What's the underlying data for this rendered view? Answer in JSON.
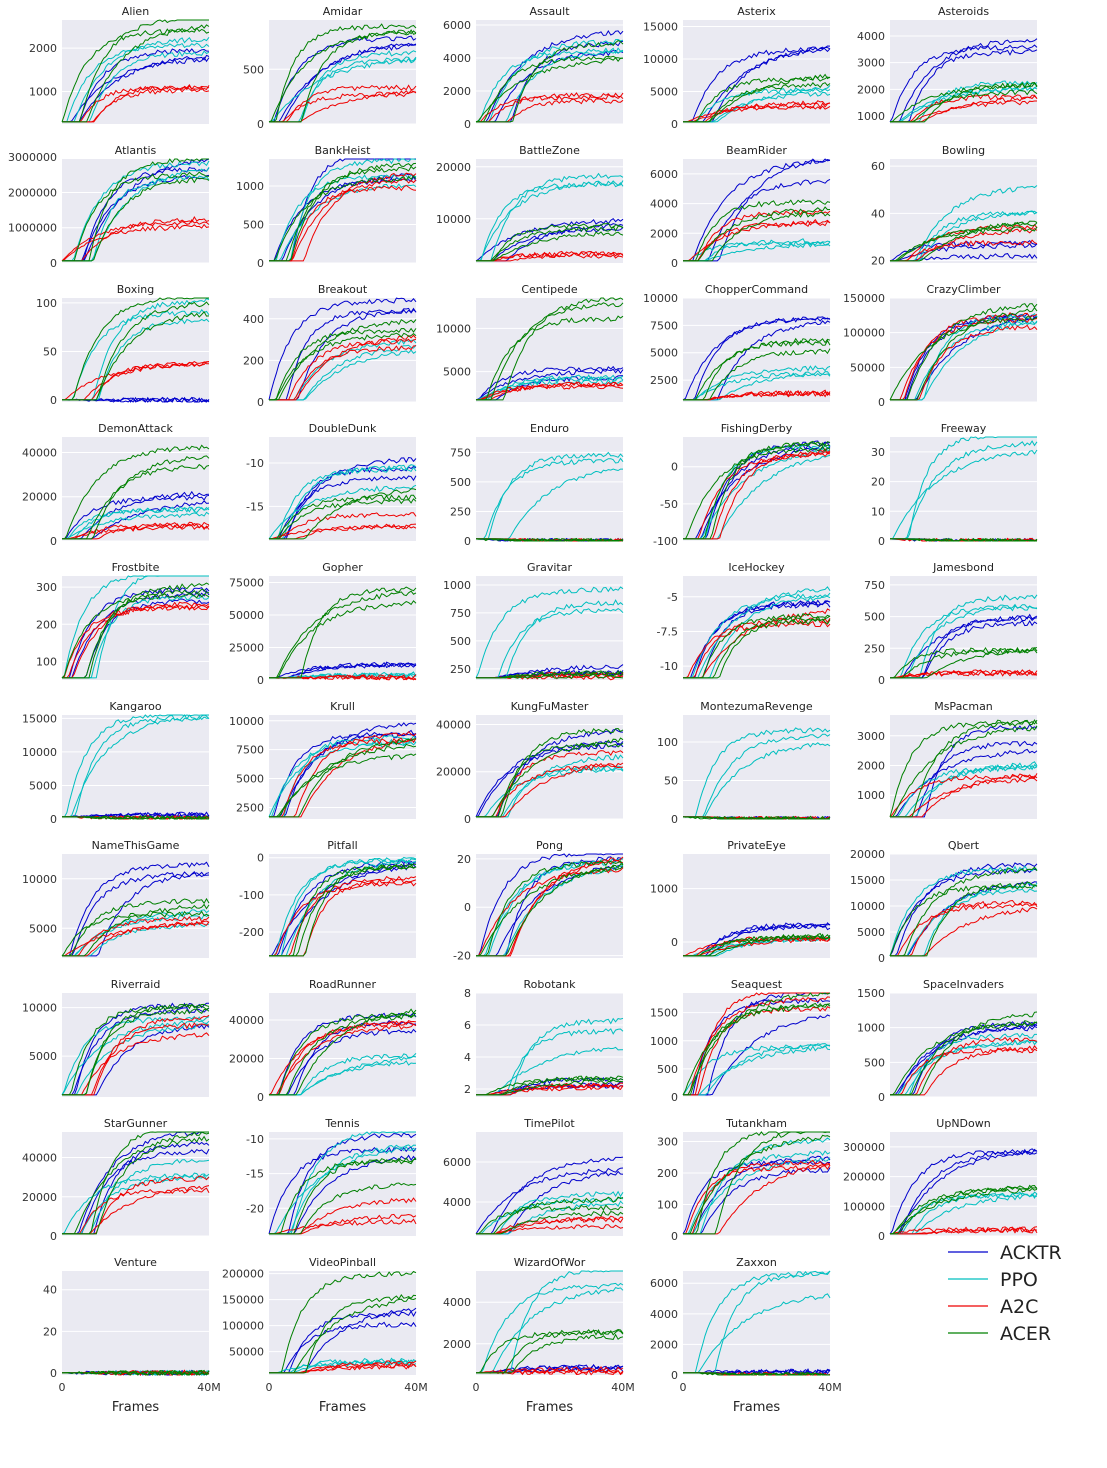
{
  "chart_data": {
    "type": "line",
    "xlabel": "Frames",
    "x_tick_labels": [
      "0",
      "40M"
    ],
    "x_range": [
      0,
      40000000
    ],
    "grid": true,
    "legend_placement": "bottom-right",
    "series": [
      {
        "name": "ACKTR",
        "color": "#0000cc"
      },
      {
        "name": "PPO",
        "color": "#00bfbf"
      },
      {
        "name": "A2C",
        "color": "#ee0000"
      },
      {
        "name": "ACER",
        "color": "#008000"
      }
    ],
    "panels": [
      {
        "title": "Alien",
        "ylim": [
          250,
          2650
        ],
        "yticks": [
          1000,
          2000
        ],
        "final": {
          "ACKTR": 1700,
          "PPO": 2000,
          "A2C": 1200,
          "ACER": 2400
        }
      },
      {
        "title": "Amidar",
        "ylim": [
          0,
          950
        ],
        "yticks": [
          0,
          500
        ],
        "final": {
          "ACKTR": 750,
          "PPO": 650,
          "A2C": 300,
          "ACER": 850
        }
      },
      {
        "title": "Assault",
        "ylim": [
          0,
          6300
        ],
        "yticks": [
          0,
          2000,
          4000,
          6000
        ],
        "final": {
          "ACKTR": 5000,
          "PPO": 4500,
          "A2C": 1600,
          "ACER": 4500
        }
      },
      {
        "title": "Asterix",
        "ylim": [
          0,
          16000
        ],
        "yticks": [
          0,
          5000,
          10000,
          15000
        ],
        "final": {
          "ACKTR": 12000,
          "PPO": 5500,
          "A2C": 3000,
          "ACER": 7000
        }
      },
      {
        "title": "Asteroids",
        "ylim": [
          700,
          4600
        ],
        "yticks": [
          1000,
          2000,
          3000,
          4000
        ],
        "final": {
          "ACKTR": 3500,
          "PPO": 2100,
          "A2C": 1600,
          "ACER": 2000
        }
      },
      {
        "title": "Atlantis",
        "ylim": [
          0,
          2950000
        ],
        "yticks": [
          0,
          1000000,
          2000000,
          3000000
        ],
        "final": {
          "ACKTR": 2700000,
          "PPO": 2700000,
          "A2C": 1200000,
          "ACER": 2750000
        }
      },
      {
        "title": "BankHeist",
        "ylim": [
          0,
          1350
        ],
        "yticks": [
          0,
          500,
          1000
        ],
        "final": {
          "ACKTR": 1280,
          "PPO": 1200,
          "A2C": 1100,
          "ACER": 1150
        }
      },
      {
        "title": "BattleZone",
        "ylim": [
          1500,
          21500
        ],
        "yticks": [
          10000,
          20000
        ],
        "final": {
          "ACKTR": 9000,
          "PPO": 17000,
          "A2C": 3000,
          "ACER": 8000
        }
      },
      {
        "title": "BeamRider",
        "ylim": [
          0,
          7000
        ],
        "yticks": [
          0,
          2000,
          4000,
          6000
        ],
        "final": {
          "ACKTR": 6400,
          "PPO": 1500,
          "A2C": 3000,
          "ACER": 3900
        }
      },
      {
        "title": "Bowling",
        "ylim": [
          19,
          63
        ],
        "yticks": [
          20,
          40,
          60
        ],
        "final": {
          "ACKTR": 25,
          "PPO": 45,
          "A2C": 31,
          "ACER": 33
        }
      },
      {
        "title": "Boxing",
        "ylim": [
          -2,
          105
        ],
        "yticks": [
          0,
          50,
          100
        ],
        "final": {
          "ACKTR": 0,
          "PPO": 95,
          "A2C": 40,
          "ACER": 98
        }
      },
      {
        "title": "Breakout",
        "ylim": [
          0,
          500
        ],
        "yticks": [
          0,
          200,
          400
        ],
        "final": {
          "ACKTR": 430,
          "PPO": 270,
          "A2C": 300,
          "ACER": 350
        }
      },
      {
        "title": "Centipede",
        "ylim": [
          1500,
          13500
        ],
        "yticks": [
          5000,
          10000
        ],
        "final": {
          "ACKTR": 5000,
          "PPO": 4500,
          "A2C": 3500,
          "ACER": 12000
        }
      },
      {
        "title": "ChopperCommand",
        "ylim": [
          500,
          10000
        ],
        "yticks": [
          2500,
          5000,
          7500,
          10000
        ],
        "final": {
          "ACKTR": 8000,
          "PPO": 3200,
          "A2C": 1200,
          "ACER": 5500
        }
      },
      {
        "title": "CrazyClimber",
        "ylim": [
          0,
          150000
        ],
        "yticks": [
          0,
          50000,
          100000,
          150000
        ],
        "final": {
          "ACKTR": 115000,
          "PPO": 110000,
          "A2C": 112000,
          "ACER": 135000
        }
      },
      {
        "title": "DemonAttack",
        "ylim": [
          0,
          47000
        ],
        "yticks": [
          0,
          20000,
          40000
        ],
        "final": {
          "ACKTR": 22000,
          "PPO": 13000,
          "A2C": 7500,
          "ACER": 38000
        }
      },
      {
        "title": "DoubleDunk",
        "ylim": [
          -19,
          -7
        ],
        "yticks": [
          -15,
          -10
        ],
        "final": {
          "ACKTR": -11,
          "PPO": -12,
          "A2C": -16,
          "ACER": -13
        }
      },
      {
        "title": "Enduro",
        "ylim": [
          0,
          880
        ],
        "yticks": [
          0,
          250,
          500,
          750
        ],
        "final": {
          "ACKTR": 0,
          "PPO": 760,
          "A2C": 0,
          "ACER": 0
        }
      },
      {
        "title": "FishingDerby",
        "ylim": [
          -100,
          40
        ],
        "yticks": [
          -100,
          -50,
          0
        ],
        "final": {
          "ACKTR": 30,
          "PPO": 25,
          "A2C": 20,
          "ACER": 28
        }
      },
      {
        "title": "Freeway",
        "ylim": [
          0,
          35
        ],
        "yticks": [
          0,
          10,
          20,
          30
        ],
        "final": {
          "ACKTR": 0,
          "PPO": 32,
          "A2C": 0,
          "ACER": 0
        }
      },
      {
        "title": "Frostbite",
        "ylim": [
          50,
          330
        ],
        "yticks": [
          100,
          200,
          300
        ],
        "final": {
          "ACKTR": 280,
          "PPO": 310,
          "A2C": 260,
          "ACER": 270
        }
      },
      {
        "title": "Gopher",
        "ylim": [
          0,
          80000
        ],
        "yticks": [
          0,
          25000,
          50000,
          75000
        ],
        "final": {
          "ACKTR": 12000,
          "PPO": 4000,
          "A2C": 2000,
          "ACER": 70000
        }
      },
      {
        "title": "Gravitar",
        "ylim": [
          150,
          1080
        ],
        "yticks": [
          250,
          500,
          750,
          1000
        ],
        "final": {
          "ACKTR": 250,
          "PPO": 900,
          "A2C": 200,
          "ACER": 200
        }
      },
      {
        "title": "IceHockey",
        "ylim": [
          -11,
          -3.5
        ],
        "yticks": [
          -10,
          -7.5,
          -5
        ],
        "final": {
          "ACKTR": -5.5,
          "PPO": -4.5,
          "A2C": -6.5,
          "ACER": -6
        }
      },
      {
        "title": "Jamesbond",
        "ylim": [
          0,
          820
        ],
        "yticks": [
          0,
          250,
          500,
          750
        ],
        "final": {
          "ACKTR": 450,
          "PPO": 650,
          "A2C": 60,
          "ACER": 250
        }
      },
      {
        "title": "Kangaroo",
        "ylim": [
          0,
          15500
        ],
        "yticks": [
          0,
          5000,
          10000,
          15000
        ],
        "final": {
          "ACKTR": 700,
          "PPO": 14000,
          "A2C": 100,
          "ACER": 100
        }
      },
      {
        "title": "Krull",
        "ylim": [
          1500,
          10500
        ],
        "yticks": [
          2500,
          5000,
          7500,
          10000
        ],
        "final": {
          "ACKTR": 9500,
          "PPO": 8500,
          "A2C": 8000,
          "ACER": 7500
        }
      },
      {
        "title": "KungFuMaster",
        "ylim": [
          0,
          44000
        ],
        "yticks": [
          0,
          20000,
          40000
        ],
        "final": {
          "ACKTR": 35000,
          "PPO": 25000,
          "A2C": 25000,
          "ACER": 35000
        }
      },
      {
        "title": "MontezumaRevenge",
        "ylim": [
          0,
          135
        ],
        "yticks": [
          0,
          50,
          100
        ],
        "final": {
          "ACKTR": 0,
          "PPO": 110,
          "A2C": 0,
          "ACER": 0
        }
      },
      {
        "title": "MsPacman",
        "ylim": [
          200,
          3700
        ],
        "yticks": [
          1000,
          2000,
          3000
        ],
        "final": {
          "ACKTR": 3000,
          "PPO": 2200,
          "A2C": 1600,
          "ACER": 3300
        }
      },
      {
        "title": "NameThisGame",
        "ylim": [
          2000,
          12500
        ],
        "yticks": [
          5000,
          10000
        ],
        "final": {
          "ACKTR": 10500,
          "PPO": 6000,
          "A2C": 6000,
          "ACER": 7000
        }
      },
      {
        "title": "Pitfall",
        "ylim": [
          -270,
          10
        ],
        "yticks": [
          -200,
          -100,
          0
        ],
        "final": {
          "ACKTR": -10,
          "PPO": -5,
          "A2C": -60,
          "ACER": -20
        }
      },
      {
        "title": "Pong",
        "ylim": [
          -21,
          22
        ],
        "yticks": [
          -20,
          0,
          20
        ],
        "final": {
          "ACKTR": 20,
          "PPO": 20,
          "A2C": 19,
          "ACER": 20
        }
      },
      {
        "title": "PrivateEye",
        "ylim": [
          -300,
          1650
        ],
        "yticks": [
          0,
          1000
        ],
        "final": {
          "ACKTR": 300,
          "PPO": 80,
          "A2C": 70,
          "ACER": 100
        }
      },
      {
        "title": "Qbert",
        "ylim": [
          0,
          20000
        ],
        "yticks": [
          0,
          5000,
          10000,
          15000,
          20000
        ],
        "final": {
          "ACKTR": 17500,
          "PPO": 15000,
          "A2C": 10000,
          "ACER": 15500
        }
      },
      {
        "title": "Riverraid",
        "ylim": [
          800,
          11500
        ],
        "yticks": [
          5000,
          10000
        ],
        "final": {
          "ACKTR": 9000,
          "PPO": 8500,
          "A2C": 8000,
          "ACER": 9500
        }
      },
      {
        "title": "RoadRunner",
        "ylim": [
          0,
          54000
        ],
        "yticks": [
          0,
          20000,
          40000
        ],
        "final": {
          "ACKTR": 38000,
          "PPO": 20000,
          "A2C": 35000,
          "ACER": 45000
        }
      },
      {
        "title": "Robotank",
        "ylim": [
          1.5,
          8
        ],
        "yticks": [
          2,
          4,
          6,
          8
        ],
        "final": {
          "ACKTR": 2.5,
          "PPO": 5.5,
          "A2C": 2.2,
          "ACER": 2.4
        }
      },
      {
        "title": "Seaquest",
        "ylim": [
          0,
          1850
        ],
        "yticks": [
          0,
          500,
          1000,
          1500
        ],
        "final": {
          "ACKTR": 1750,
          "PPO": 950,
          "A2C": 1700,
          "ACER": 1750
        }
      },
      {
        "title": "SpaceInvaders",
        "ylim": [
          0,
          1500
        ],
        "yticks": [
          0,
          500,
          1000,
          1500
        ],
        "final": {
          "ACKTR": 1000,
          "PPO": 900,
          "A2C": 750,
          "ACER": 1200
        }
      },
      {
        "title": "StarGunner",
        "ylim": [
          0,
          53000
        ],
        "yticks": [
          0,
          20000,
          40000
        ],
        "final": {
          "ACKTR": 48000,
          "PPO": 35000,
          "A2C": 26000,
          "ACER": 52000
        }
      },
      {
        "title": "Tennis",
        "ylim": [
          -24,
          -9
        ],
        "yticks": [
          -20,
          -15,
          -10
        ],
        "final": {
          "ACKTR": -11,
          "PPO": -10,
          "A2C": -20,
          "ACER": -15
        }
      },
      {
        "title": "TimePilot",
        "ylim": [
          2300,
          7500
        ],
        "yticks": [
          4000,
          6000
        ],
        "final": {
          "ACKTR": 6500,
          "PPO": 4500,
          "A2C": 3000,
          "ACER": 4000
        }
      },
      {
        "title": "Tutankham",
        "ylim": [
          0,
          330
        ],
        "yticks": [
          0,
          100,
          200,
          300
        ],
        "final": {
          "ACKTR": 250,
          "PPO": 270,
          "A2C": 220,
          "ACER": 300
        }
      },
      {
        "title": "UpNDown",
        "ylim": [
          0,
          350000
        ],
        "yticks": [
          0,
          100000,
          200000,
          300000
        ],
        "final": {
          "ACKTR": 260000,
          "PPO": 130000,
          "A2C": 20000,
          "ACER": 150000
        }
      },
      {
        "title": "Venture",
        "ylim": [
          -1,
          49
        ],
        "yticks": [
          0,
          20,
          40
        ],
        "final": {
          "ACKTR": 0,
          "PPO": 0,
          "A2C": 0,
          "ACER": 0
        }
      },
      {
        "title": "VideoPinball",
        "ylim": [
          5000,
          205000
        ],
        "yticks": [
          50000,
          100000,
          150000,
          200000
        ],
        "final": {
          "ACKTR": 120000,
          "PPO": 30000,
          "A2C": 25000,
          "ACER": 180000
        }
      },
      {
        "title": "WizardOfWor",
        "ylim": [
          500,
          5500
        ],
        "yticks": [
          2000,
          4000
        ],
        "final": {
          "ACKTR": 900,
          "PPO": 5000,
          "A2C": 700,
          "ACER": 2500
        }
      },
      {
        "title": "Zaxxon",
        "ylim": [
          0,
          6800
        ],
        "yticks": [
          0,
          2000,
          4000,
          6000
        ],
        "final": {
          "ACKTR": 200,
          "PPO": 6000,
          "A2C": 0,
          "ACER": 0
        }
      }
    ]
  }
}
